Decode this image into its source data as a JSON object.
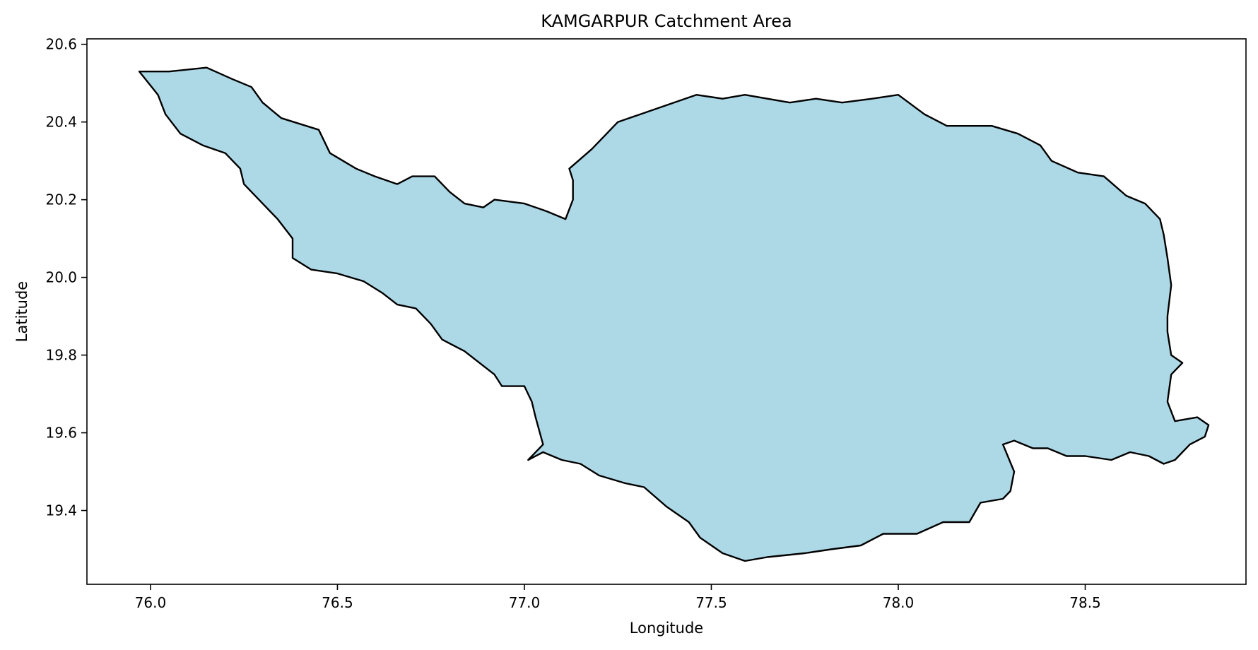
{
  "chart_data": {
    "type": "map",
    "title": "KAMGARPUR Catchment Area",
    "xlabel": "Longitude",
    "ylabel": "Latitude",
    "xlim": [
      75.83,
      78.93
    ],
    "ylim": [
      19.21,
      20.614
    ],
    "xticks": [
      {
        "value": 76.0,
        "label": "76.0"
      },
      {
        "value": 76.5,
        "label": "76.5"
      },
      {
        "value": 77.0,
        "label": "77.0"
      },
      {
        "value": 77.5,
        "label": "77.5"
      },
      {
        "value": 78.0,
        "label": "78.0"
      },
      {
        "value": 78.5,
        "label": "78.5"
      }
    ],
    "yticks": [
      {
        "value": 19.4,
        "label": "19.4"
      },
      {
        "value": 19.6,
        "label": "19.6"
      },
      {
        "value": 19.8,
        "label": "19.8"
      },
      {
        "value": 20.0,
        "label": "20.0"
      },
      {
        "value": 20.2,
        "label": "20.2"
      },
      {
        "value": 20.4,
        "label": "20.4"
      },
      {
        "value": 20.6,
        "label": "20.6"
      }
    ],
    "grid": false,
    "fill_color": "#add8e6",
    "edge_color": "#000000",
    "boundary": [
      [
        75.97,
        20.53
      ],
      [
        76.05,
        20.53
      ],
      [
        76.15,
        20.54
      ],
      [
        76.22,
        20.51
      ],
      [
        76.27,
        20.49
      ],
      [
        76.3,
        20.45
      ],
      [
        76.35,
        20.41
      ],
      [
        76.45,
        20.38
      ],
      [
        76.48,
        20.32
      ],
      [
        76.55,
        20.28
      ],
      [
        76.6,
        20.26
      ],
      [
        76.66,
        20.24
      ],
      [
        76.7,
        20.26
      ],
      [
        76.76,
        20.26
      ],
      [
        76.8,
        20.22
      ],
      [
        76.84,
        20.19
      ],
      [
        76.89,
        20.18
      ],
      [
        76.92,
        20.2
      ],
      [
        77.0,
        20.19
      ],
      [
        77.06,
        20.17
      ],
      [
        77.11,
        20.15
      ],
      [
        77.13,
        20.2
      ],
      [
        77.13,
        20.25
      ],
      [
        77.12,
        20.28
      ],
      [
        77.18,
        20.33
      ],
      [
        77.22,
        20.37
      ],
      [
        77.25,
        20.4
      ],
      [
        77.31,
        20.42
      ],
      [
        77.4,
        20.45
      ],
      [
        77.46,
        20.47
      ],
      [
        77.53,
        20.46
      ],
      [
        77.59,
        20.47
      ],
      [
        77.65,
        20.46
      ],
      [
        77.71,
        20.45
      ],
      [
        77.78,
        20.46
      ],
      [
        77.85,
        20.45
      ],
      [
        77.93,
        20.46
      ],
      [
        78.0,
        20.47
      ],
      [
        78.07,
        20.42
      ],
      [
        78.13,
        20.39
      ],
      [
        78.18,
        20.39
      ],
      [
        78.25,
        20.39
      ],
      [
        78.32,
        20.37
      ],
      [
        78.38,
        20.34
      ],
      [
        78.41,
        20.3
      ],
      [
        78.48,
        20.27
      ],
      [
        78.55,
        20.26
      ],
      [
        78.61,
        20.21
      ],
      [
        78.66,
        20.19
      ],
      [
        78.7,
        20.15
      ],
      [
        78.71,
        20.11
      ],
      [
        78.72,
        20.05
      ],
      [
        78.73,
        19.98
      ],
      [
        78.72,
        19.9
      ],
      [
        78.72,
        19.86
      ],
      [
        78.73,
        19.8
      ],
      [
        78.76,
        19.78
      ],
      [
        78.73,
        19.75
      ],
      [
        78.72,
        19.68
      ],
      [
        78.74,
        19.63
      ],
      [
        78.8,
        19.64
      ],
      [
        78.83,
        19.62
      ],
      [
        78.82,
        19.59
      ],
      [
        78.78,
        19.57
      ],
      [
        78.74,
        19.53
      ],
      [
        78.71,
        19.52
      ],
      [
        78.67,
        19.54
      ],
      [
        78.62,
        19.55
      ],
      [
        78.57,
        19.53
      ],
      [
        78.5,
        19.54
      ],
      [
        78.45,
        19.54
      ],
      [
        78.4,
        19.56
      ],
      [
        78.36,
        19.56
      ],
      [
        78.31,
        19.58
      ],
      [
        78.28,
        19.57
      ],
      [
        78.31,
        19.5
      ],
      [
        78.3,
        19.45
      ],
      [
        78.28,
        19.43
      ],
      [
        78.22,
        19.42
      ],
      [
        78.19,
        19.37
      ],
      [
        78.12,
        19.37
      ],
      [
        78.05,
        19.34
      ],
      [
        77.96,
        19.34
      ],
      [
        77.9,
        19.31
      ],
      [
        77.82,
        19.3
      ],
      [
        77.75,
        19.29
      ],
      [
        77.65,
        19.28
      ],
      [
        77.59,
        19.27
      ],
      [
        77.53,
        19.29
      ],
      [
        77.47,
        19.33
      ],
      [
        77.44,
        19.37
      ],
      [
        77.38,
        19.41
      ],
      [
        77.32,
        19.46
      ],
      [
        77.27,
        19.47
      ],
      [
        77.2,
        19.49
      ],
      [
        77.15,
        19.52
      ],
      [
        77.1,
        19.53
      ],
      [
        77.05,
        19.55
      ],
      [
        77.01,
        19.53
      ],
      [
        77.05,
        19.57
      ],
      [
        77.03,
        19.64
      ],
      [
        77.02,
        19.68
      ],
      [
        77.0,
        19.72
      ],
      [
        76.94,
        19.72
      ],
      [
        76.92,
        19.75
      ],
      [
        76.84,
        19.81
      ],
      [
        76.78,
        19.84
      ],
      [
        76.75,
        19.88
      ],
      [
        76.71,
        19.92
      ],
      [
        76.66,
        19.93
      ],
      [
        76.62,
        19.96
      ],
      [
        76.57,
        19.99
      ],
      [
        76.5,
        20.01
      ],
      [
        76.43,
        20.02
      ],
      [
        76.38,
        20.05
      ],
      [
        76.38,
        20.1
      ],
      [
        76.34,
        20.15
      ],
      [
        76.3,
        20.19
      ],
      [
        76.25,
        20.24
      ],
      [
        76.24,
        20.28
      ],
      [
        76.2,
        20.32
      ],
      [
        76.14,
        20.34
      ],
      [
        76.08,
        20.37
      ],
      [
        76.04,
        20.42
      ],
      [
        76.02,
        20.47
      ],
      [
        75.97,
        20.53
      ]
    ]
  }
}
